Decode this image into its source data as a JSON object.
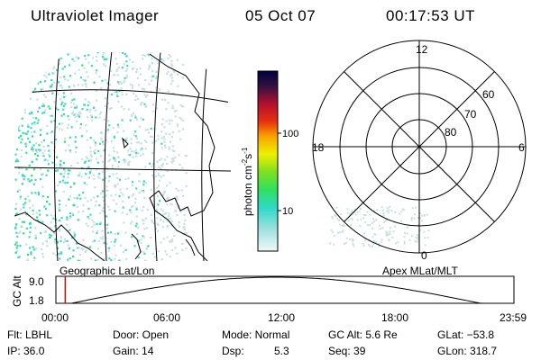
{
  "header": {
    "title": "Ultraviolet Imager",
    "date": "05 Oct 07",
    "time": "00:17:53 UT"
  },
  "geo_panel": {
    "label": "Geographic Lat/Lon"
  },
  "polar_panel": {
    "label": "Apex MLat/MLT",
    "mlt_labels": {
      "top": "12",
      "left": "18",
      "right": "6",
      "bottom": "0"
    },
    "lat_labels": [
      "60",
      "70",
      "80"
    ]
  },
  "colorbar": {
    "unit": "photon cm",
    "unit_exp1": "-2",
    "unit_mid": "s",
    "unit_exp2": "-1",
    "tick_labels": [
      "100",
      "10"
    ]
  },
  "timeline": {
    "axis_label": "GC Alt",
    "y_ticks": [
      "9.0",
      "1.8"
    ],
    "x_ticks": [
      "00:00",
      "06:00",
      "12:00",
      "18:00",
      "23:59"
    ],
    "current_marker_hours": 0.3
  },
  "params": {
    "filter": "Flt: LBHL",
    "door": "Door: Open",
    "mode": "Mode: Normal",
    "gc_alt": "GC Alt: 5.6 Re",
    "glat": "GLat: −53.8",
    "ip": "IP: 36.0",
    "gain": "Gain: 14",
    "dsp_label": "Dsp:",
    "dsp_value": "5.3",
    "seq": "Seq: 39",
    "glon": "GLon: 318.7"
  },
  "colors": {
    "aurora_cyan": "#40d8c8",
    "aurora_green": "#30e070",
    "aurora_pale": "#c8e0e0",
    "marker_red": "#d01010"
  }
}
